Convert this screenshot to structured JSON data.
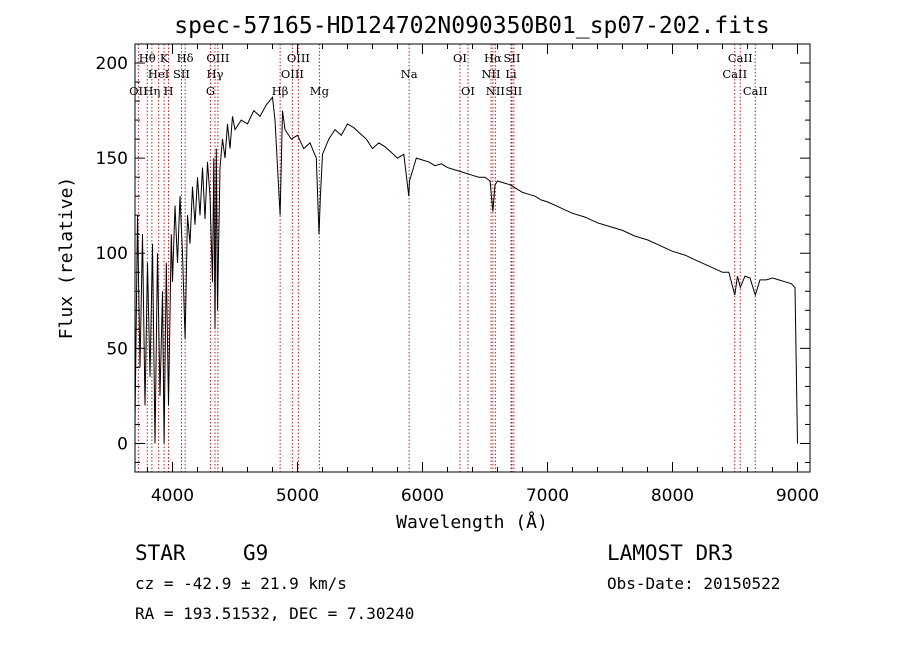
{
  "chart_data": {
    "type": "line",
    "title": "spec-57165-HD124702N090350B01_sp07-202.fits",
    "xlabel": "Wavelength (Å)",
    "ylabel": "Flux (relative)",
    "xlim": [
      3700,
      9100
    ],
    "ylim": [
      -15,
      210
    ],
    "xticks": [
      4000,
      5000,
      6000,
      7000,
      8000,
      9000
    ],
    "yticks": [
      0,
      50,
      100,
      150,
      200
    ],
    "series": [
      {
        "name": "flux",
        "x": [
          3700,
          3720,
          3740,
          3760,
          3780,
          3800,
          3820,
          3840,
          3860,
          3880,
          3900,
          3920,
          3933,
          3950,
          3968,
          3990,
          4000,
          4020,
          4040,
          4060,
          4080,
          4101,
          4120,
          4140,
          4160,
          4180,
          4200,
          4220,
          4240,
          4260,
          4280,
          4300,
          4320,
          4330,
          4340,
          4350,
          4360,
          4380,
          4400,
          4420,
          4440,
          4460,
          4480,
          4500,
          4550,
          4600,
          4650,
          4700,
          4750,
          4800,
          4820,
          4861,
          4880,
          4900,
          4950,
          5000,
          5050,
          5100,
          5150,
          5172,
          5183,
          5200,
          5250,
          5300,
          5350,
          5400,
          5450,
          5500,
          5550,
          5600,
          5650,
          5700,
          5750,
          5800,
          5850,
          5890,
          5896,
          5950,
          6000,
          6050,
          6100,
          6150,
          6200,
          6250,
          6300,
          6350,
          6400,
          6450,
          6500,
          6540,
          6563,
          6580,
          6600,
          6650,
          6700,
          6750,
          6800,
          6850,
          6900,
          6950,
          7000,
          7100,
          7200,
          7300,
          7400,
          7500,
          7600,
          7700,
          7800,
          7900,
          8000,
          8100,
          8200,
          8300,
          8400,
          8450,
          8498,
          8520,
          8542,
          8580,
          8620,
          8662,
          8700,
          8750,
          8800,
          8850,
          8900,
          8950,
          8980,
          9000
        ],
        "values": [
          10,
          120,
          40,
          110,
          20,
          95,
          35,
          105,
          0,
          100,
          25,
          80,
          0,
          95,
          20,
          110,
          85,
          125,
          95,
          130,
          100,
          55,
          120,
          105,
          135,
          115,
          140,
          120,
          145,
          118,
          148,
          130,
          85,
          150,
          60,
          155,
          70,
          145,
          160,
          150,
          168,
          155,
          172,
          165,
          170,
          168,
          175,
          172,
          178,
          182,
          170,
          120,
          175,
          165,
          160,
          162,
          155,
          158,
          150,
          110,
          130,
          152,
          160,
          165,
          162,
          168,
          166,
          163,
          160,
          155,
          158,
          156,
          153,
          150,
          152,
          130,
          138,
          150,
          149,
          148,
          146,
          147,
          145,
          144,
          143,
          142,
          141,
          140,
          140,
          138,
          122,
          136,
          138,
          137,
          136,
          134,
          132,
          131,
          130,
          128,
          127,
          124,
          121,
          119,
          116,
          114,
          112,
          109,
          107,
          104,
          101,
          99,
          96,
          93,
          90,
          90,
          78,
          88,
          82,
          88,
          87,
          78,
          86,
          86,
          87,
          86,
          85,
          84,
          82,
          0
        ]
      }
    ],
    "spectral_lines": [
      {
        "label": "OII",
        "wavelength": 3727,
        "row": 3
      },
      {
        "label": "Hθ",
        "wavelength": 3798,
        "row": 1
      },
      {
        "label": "Hη",
        "wavelength": 3835,
        "row": 3
      },
      {
        "label": "HeI",
        "wavelength": 3889,
        "row": 2
      },
      {
        "label": "K",
        "wavelength": 3933,
        "row": 1
      },
      {
        "label": "H",
        "wavelength": 3968,
        "row": 3
      },
      {
        "label": "SII",
        "wavelength": 4072,
        "row": 2
      },
      {
        "label": "Hδ",
        "wavelength": 4101,
        "row": 1
      },
      {
        "label": "G",
        "wavelength": 4304,
        "row": 3
      },
      {
        "label": "Hγ",
        "wavelength": 4340,
        "row": 2
      },
      {
        "label": "OIII",
        "wavelength": 4363,
        "row": 1
      },
      {
        "label": "Hβ",
        "wavelength": 4861,
        "row": 3
      },
      {
        "label": "OIII",
        "wavelength": 4959,
        "row": 2
      },
      {
        "label": "OIII",
        "wavelength": 5007,
        "row": 1
      },
      {
        "label": "Mg",
        "wavelength": 5175,
        "row": 3
      },
      {
        "label": "Na",
        "wavelength": 5893,
        "row": 2
      },
      {
        "label": "OI",
        "wavelength": 6300,
        "row": 1
      },
      {
        "label": "OI",
        "wavelength": 6364,
        "row": 3
      },
      {
        "label": "NII",
        "wavelength": 6548,
        "row": 2
      },
      {
        "label": "Hα",
        "wavelength": 6563,
        "row": 1
      },
      {
        "label": "NII",
        "wavelength": 6583,
        "row": 3
      },
      {
        "label": "Li",
        "wavelength": 6708,
        "row": 2
      },
      {
        "label": "SII",
        "wavelength": 6716,
        "row": 1
      },
      {
        "label": "SII",
        "wavelength": 6731,
        "row": 3
      },
      {
        "label": "CaII",
        "wavelength": 8498,
        "row": 2
      },
      {
        "label": "CaII",
        "wavelength": 8542,
        "row": 1
      },
      {
        "label": "CaII",
        "wavelength": 8662,
        "row": 3
      }
    ]
  },
  "info": {
    "object_class": "STAR",
    "subclass": "G9",
    "cz": "cz = -42.9 ± 21.9 km/s",
    "coords": "RA = 193.51532, DEC =   7.30240",
    "survey": "LAMOST DR3",
    "obs_date": "Obs-Date: 20150522"
  }
}
